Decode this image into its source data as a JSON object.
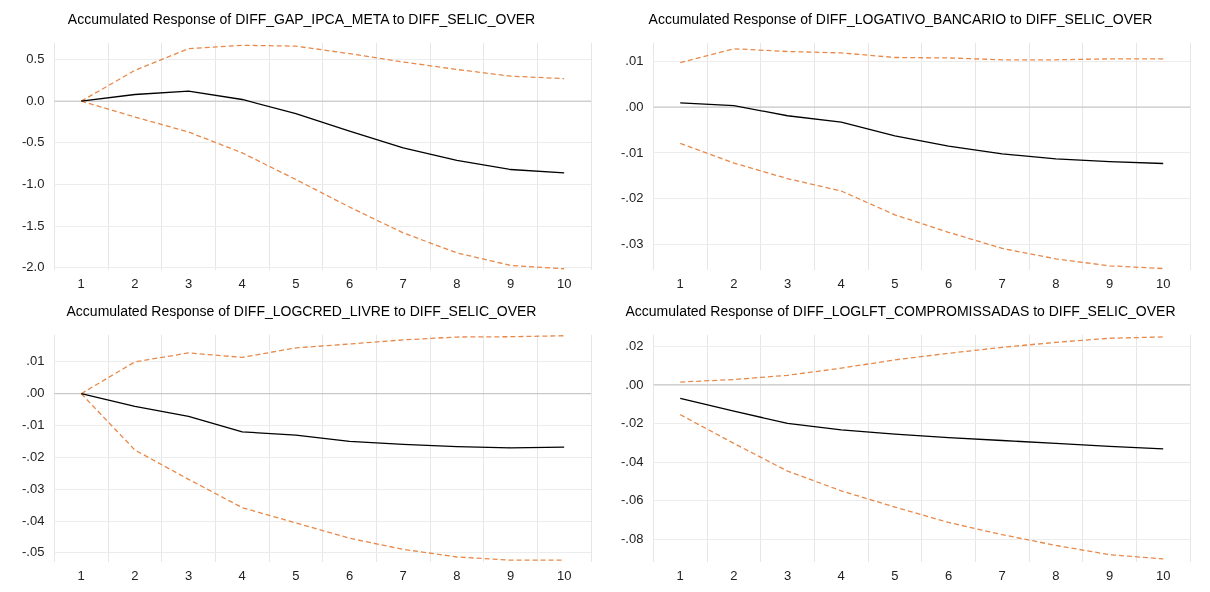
{
  "chart_data": [
    {
      "type": "line",
      "title": "Accumulated Response of DIFF_GAP_IPCA_META to DIFF_SELIC_OVER",
      "categories": [
        "1",
        "2",
        "3",
        "4",
        "5",
        "6",
        "7",
        "8",
        "9",
        "10"
      ],
      "ylim": [
        -2.03,
        0.7
      ],
      "yticks": [
        {
          "value": 0.5,
          "label": "0.5"
        },
        {
          "value": 0,
          "label": "0.0"
        },
        {
          "value": -0.5,
          "label": "-0.5"
        },
        {
          "value": -1,
          "label": "-1.0"
        },
        {
          "value": -1.5,
          "label": "-1.5"
        },
        {
          "value": -2,
          "label": "-2.0"
        }
      ],
      "grid": true,
      "ref_lines": [
        {
          "axis": "y",
          "value": 0,
          "color": "#bfbfbf"
        }
      ],
      "series": [
        {
          "color": "#000000",
          "line_style": "solid",
          "values": [
            0,
            0.08,
            0.12,
            0.02,
            -0.15,
            -0.36,
            -0.56,
            -0.71,
            -0.82,
            -0.86
          ]
        },
        {
          "color": "#e8894a",
          "line_style": "dashed",
          "values": [
            0,
            0.37,
            0.63,
            0.67,
            0.66,
            0.57,
            0.47,
            0.38,
            0.3,
            0.27
          ]
        },
        {
          "color": "#e8894a",
          "line_style": "dashed",
          "values": [
            0,
            -0.19,
            -0.37,
            -0.62,
            -0.94,
            -1.27,
            -1.58,
            -1.82,
            -1.97,
            -2.01
          ]
        }
      ]
    },
    {
      "type": "line",
      "title": "Accumulated Response of DIFF_LOGATIVO_BANCARIO to DIFF_SELIC_OVER",
      "categories": [
        "1",
        "2",
        "3",
        "4",
        "5",
        "6",
        "7",
        "8",
        "9",
        "10"
      ],
      "ylim": [
        -0.0356,
        0.014
      ],
      "yticks": [
        {
          "value": 0.01,
          "label": ".01"
        },
        {
          "value": 0,
          "label": ".00"
        },
        {
          "value": -0.01,
          "label": "-.01"
        },
        {
          "value": -0.02,
          "label": "-.02"
        },
        {
          "value": -0.03,
          "label": "-.03"
        }
      ],
      "grid": true,
      "ref_lines": [
        {
          "axis": "y",
          "value": 0,
          "color": "#bfbfbf"
        }
      ],
      "series": [
        {
          "color": "#000000",
          "line_style": "solid",
          "values": [
            0.0009,
            0.0003,
            -0.0019,
            -0.0033,
            -0.0063,
            -0.0085,
            -0.0102,
            -0.0113,
            -0.0119,
            -0.0123
          ]
        },
        {
          "color": "#e8894a",
          "line_style": "dashed",
          "values": [
            0.0097,
            0.0127,
            0.0121,
            0.0118,
            0.0108,
            0.0107,
            0.0103,
            0.0103,
            0.0105,
            0.0105
          ]
        },
        {
          "color": "#e8894a",
          "line_style": "dashed",
          "values": [
            -0.0079,
            -0.0122,
            -0.0156,
            -0.0183,
            -0.0235,
            -0.0273,
            -0.0308,
            -0.0331,
            -0.0346,
            -0.0352
          ]
        }
      ]
    },
    {
      "type": "line",
      "title": "Accumulated Response of DIFF_LOGCRED_LIVRE to DIFF_SELIC_OVER",
      "categories": [
        "1",
        "2",
        "3",
        "4",
        "5",
        "6",
        "7",
        "8",
        "9",
        "10"
      ],
      "ylim": [
        -0.053,
        0.0185
      ],
      "yticks": [
        {
          "value": 0.01,
          "label": ".01"
        },
        {
          "value": 0,
          "label": ".00"
        },
        {
          "value": -0.01,
          "label": "-.01"
        },
        {
          "value": -0.02,
          "label": "-.02"
        },
        {
          "value": -0.03,
          "label": "-.03"
        },
        {
          "value": -0.04,
          "label": "-.04"
        },
        {
          "value": -0.05,
          "label": "-.05"
        }
      ],
      "grid": true,
      "ref_lines": [
        {
          "axis": "y",
          "value": 0,
          "color": "#bfbfbf"
        }
      ],
      "series": [
        {
          "color": "#000000",
          "line_style": "solid",
          "values": [
            0,
            -0.004,
            -0.0071,
            -0.012,
            -0.013,
            -0.015,
            -0.0159,
            -0.0166,
            -0.017,
            -0.0168
          ]
        },
        {
          "color": "#e8894a",
          "line_style": "dashed",
          "values": [
            0,
            0.01,
            0.0128,
            0.0114,
            0.0144,
            0.0156,
            0.0169,
            0.0178,
            0.0179,
            0.0182
          ]
        },
        {
          "color": "#e8894a",
          "line_style": "dashed",
          "values": [
            0,
            -0.0177,
            -0.0269,
            -0.0358,
            -0.0406,
            -0.0454,
            -0.0489,
            -0.0513,
            -0.0523,
            -0.0523
          ]
        }
      ]
    },
    {
      "type": "line",
      "title": "Accumulated Response of DIFF_LOGLFT_COMPROMISSADAS to DIFF_SELIC_OVER",
      "categories": [
        "1",
        "2",
        "3",
        "4",
        "5",
        "6",
        "7",
        "8",
        "9",
        "10"
      ],
      "ylim": [
        -0.092,
        0.026
      ],
      "yticks": [
        {
          "value": 0.02,
          "label": ".02"
        },
        {
          "value": 0,
          "label": ".00"
        },
        {
          "value": -0.02,
          "label": "-.02"
        },
        {
          "value": -0.04,
          "label": "-.04"
        },
        {
          "value": -0.06,
          "label": "-.06"
        },
        {
          "value": -0.08,
          "label": "-.08"
        }
      ],
      "grid": true,
      "ref_lines": [
        {
          "axis": "y",
          "value": 0,
          "color": "#bfbfbf"
        }
      ],
      "series": [
        {
          "color": "#000000",
          "line_style": "solid",
          "values": [
            -0.0069,
            -0.0136,
            -0.0199,
            -0.0233,
            -0.0255,
            -0.0273,
            -0.0288,
            -0.0303,
            -0.0318,
            -0.0331
          ]
        },
        {
          "color": "#e8894a",
          "line_style": "dashed",
          "values": [
            0.0015,
            0.0028,
            0.005,
            0.0087,
            0.013,
            0.0164,
            0.0195,
            0.0221,
            0.0242,
            0.0249
          ]
        },
        {
          "color": "#e8894a",
          "line_style": "dashed",
          "values": [
            -0.0154,
            -0.0303,
            -0.0447,
            -0.0549,
            -0.0633,
            -0.0713,
            -0.0776,
            -0.0832,
            -0.088,
            -0.0902
          ]
        }
      ]
    }
  ]
}
